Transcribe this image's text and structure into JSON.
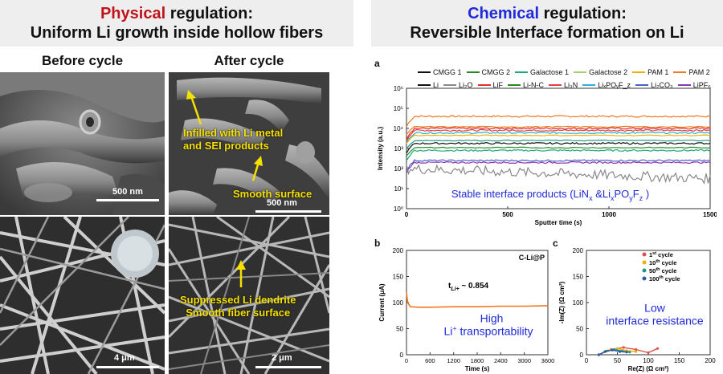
{
  "header_left": {
    "keyword": "Physical",
    "rest": " regulation:",
    "line2": "Uniform Li growth inside hollow fibers",
    "keyword_color": "#c0141c"
  },
  "header_right": {
    "keyword": "Chemical",
    "rest": " regulation:",
    "line2": "Reversible Interface formation on Li",
    "keyword_color": "#1f2ad8"
  },
  "left_panel": {
    "before_title": "Before cycle",
    "after_title": "After cycle",
    "ann_infilled": "Infilled with Li metal\nand SEI products",
    "ann_smooth": "Smooth surface",
    "ann_suppressed": "Suppressed Li dendrite\nSmooth fiber surface",
    "scale_tl": "500 nm",
    "scale_tr": "500 nm",
    "scale_bl": "4 μm",
    "scale_br": "2 μm"
  },
  "panel_a": {
    "label": "a",
    "legend": [
      "CMGG 1",
      "CMGG 2",
      "Galactose 1",
      "Galactose 2",
      "PAM 1",
      "PAM 2",
      "Li",
      "Li₂O",
      "LiF",
      "Li-N-C",
      "Li₃N",
      "LiₓPOᵧF_z",
      "Li₂CO₃",
      "LiPF₆"
    ],
    "legend_colors": [
      "#111111",
      "#2a8a2a",
      "#1faa7a",
      "#a8cf6a",
      "#f0b000",
      "#f07820",
      "#111111",
      "#888888",
      "#e03030",
      "#2a8a2a",
      "#e04040",
      "#29b3d8",
      "#4a60c8",
      "#8a3ab0"
    ],
    "ylabel": "Intensity (a.u.)",
    "xlabel": "Sputter time (s)",
    "xticks": [
      "0",
      "500",
      "1000",
      "1500"
    ],
    "yticks": [
      "10⁰",
      "10¹",
      "10²",
      "10³",
      "10⁴",
      "10⁵",
      "10⁶"
    ],
    "banner": "Stable interface products (LiN",
    "banner_x": "x",
    "banner_mid": " &Li",
    "banner_x2": "x",
    "banner_po": "PO",
    "banner_y": "y",
    "banner_f": "F",
    "banner_z": "z",
    "banner_end": " )"
  },
  "panel_b": {
    "label": "b",
    "tag": "C-Li@P",
    "tli_text": "t",
    "tli_sub": "Li+",
    "tli_val": " ~ 0.854",
    "ylabel": "Current (μA)",
    "xlabel": "Time (s)",
    "yticks": [
      "0",
      "50",
      "100",
      "150",
      "200"
    ],
    "xticks": [
      "0",
      "600",
      "1200",
      "1800",
      "2400",
      "3000",
      "3600"
    ],
    "note1": "High",
    "note2a": "Li",
    "note2sup": "+",
    "note2b": " transportability"
  },
  "panel_c": {
    "label": "c",
    "ylabel": "-Im(Z) (Ω cm²)",
    "xlabel": "Re(Z) (Ω cm²)",
    "yticks": [
      "0",
      "50",
      "100",
      "150",
      "200"
    ],
    "xticks": [
      "0",
      "50",
      "100",
      "150",
      "200"
    ],
    "legend": [
      {
        "n": "1",
        "sup": "st",
        "color": "#e05050"
      },
      {
        "n": "10",
        "sup": "th",
        "color": "#f0b000"
      },
      {
        "n": "50",
        "sup": "th",
        "color": "#1f9a8a"
      },
      {
        "n": "100",
        "sup": "th",
        "color": "#2a5aa8"
      }
    ],
    "legend_word": " cycle",
    "note1": "Low",
    "note2": "interface resistance"
  },
  "chart_data": [
    {
      "type": "line",
      "title": "",
      "xlabel": "Sputter time (s)",
      "ylabel": "Intensity (a.u.)",
      "xlim": [
        0,
        1500
      ],
      "ylim": [
        1,
        1000000
      ],
      "yscale": "log",
      "series": [
        {
          "name": "PAM 2",
          "approx_level": 40000
        },
        {
          "name": "LiF",
          "approx_level": 10000
        },
        {
          "name": "Li₃N",
          "approx_level": 8000
        },
        {
          "name": "LiₓPOᵧF_z",
          "approx_level": 6000
        },
        {
          "name": "Galactose 1",
          "approx_level": 800
        },
        {
          "name": "Li",
          "approx_level": 1800
        },
        {
          "name": "Li₂CO₃",
          "approx_level": 250
        },
        {
          "name": "LiPF₆",
          "approx_level": 200
        },
        {
          "name": "Li₂O",
          "approx_level": 25
        }
      ]
    },
    {
      "type": "line",
      "title": "",
      "xlabel": "Time (s)",
      "ylabel": "Current (μA)",
      "xlim": [
        0,
        3600
      ],
      "ylim": [
        0,
        200
      ],
      "series": [
        {
          "name": "C-Li@P",
          "x": [
            0,
            30,
            100,
            300,
            600,
            1200,
            1800,
            2400,
            3000,
            3600
          ],
          "values": [
            120,
            100,
            92,
            91,
            91,
            92,
            92,
            93,
            93,
            94
          ]
        }
      ]
    },
    {
      "type": "scatter",
      "title": "",
      "xlabel": "Re(Z) (Ω cm²)",
      "ylabel": "-Im(Z) (Ω cm²)",
      "xlim": [
        0,
        200
      ],
      "ylim": [
        0,
        200
      ],
      "series": [
        {
          "name": "1st cycle",
          "x": [
            20,
            40,
            60,
            80,
            100,
            115
          ],
          "values": [
            0,
            10,
            14,
            10,
            4,
            12
          ]
        },
        {
          "name": "10th cycle",
          "x": [
            20,
            35,
            50,
            65,
            80
          ],
          "values": [
            0,
            8,
            12,
            8,
            6
          ]
        },
        {
          "name": "50th cycle",
          "x": [
            20,
            32,
            45,
            58,
            70
          ],
          "values": [
            0,
            7,
            10,
            7,
            5
          ]
        },
        {
          "name": "100th cycle",
          "x": [
            20,
            30,
            42,
            54,
            65
          ],
          "values": [
            0,
            6,
            9,
            6,
            5
          ]
        }
      ]
    }
  ]
}
